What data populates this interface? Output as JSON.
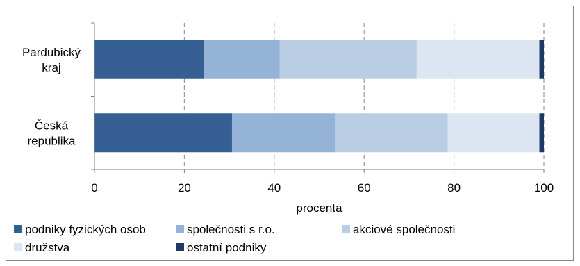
{
  "chart_data": {
    "type": "bar",
    "orientation": "horizontal",
    "stacked": true,
    "categories": [
      [
        "Pardubický",
        "kraj"
      ],
      [
        "Česká",
        "republika"
      ]
    ],
    "series": [
      {
        "name": "podniky fyzických osob",
        "color": "#355f93",
        "values": [
          24.3,
          30.6
        ]
      },
      {
        "name": "společnosti s r.o.",
        "color": "#95b3d7",
        "values": [
          16.9,
          23.0
        ]
      },
      {
        "name": "akciové společnosti",
        "color": "#b9cde5",
        "values": [
          30.5,
          25.0
        ]
      },
      {
        "name": "družstva",
        "color": "#dce6f2",
        "values": [
          27.3,
          20.4
        ]
      },
      {
        "name": "ostatní podniky",
        "color": "#1f3864",
        "values": [
          1.0,
          1.0
        ]
      }
    ],
    "xlabel": "procenta",
    "xlim": [
      0,
      100
    ],
    "xticks": [
      "0",
      "20",
      "40",
      "60",
      "80",
      "100"
    ],
    "grid": "vertical dashed",
    "legend_position": "bottom"
  }
}
